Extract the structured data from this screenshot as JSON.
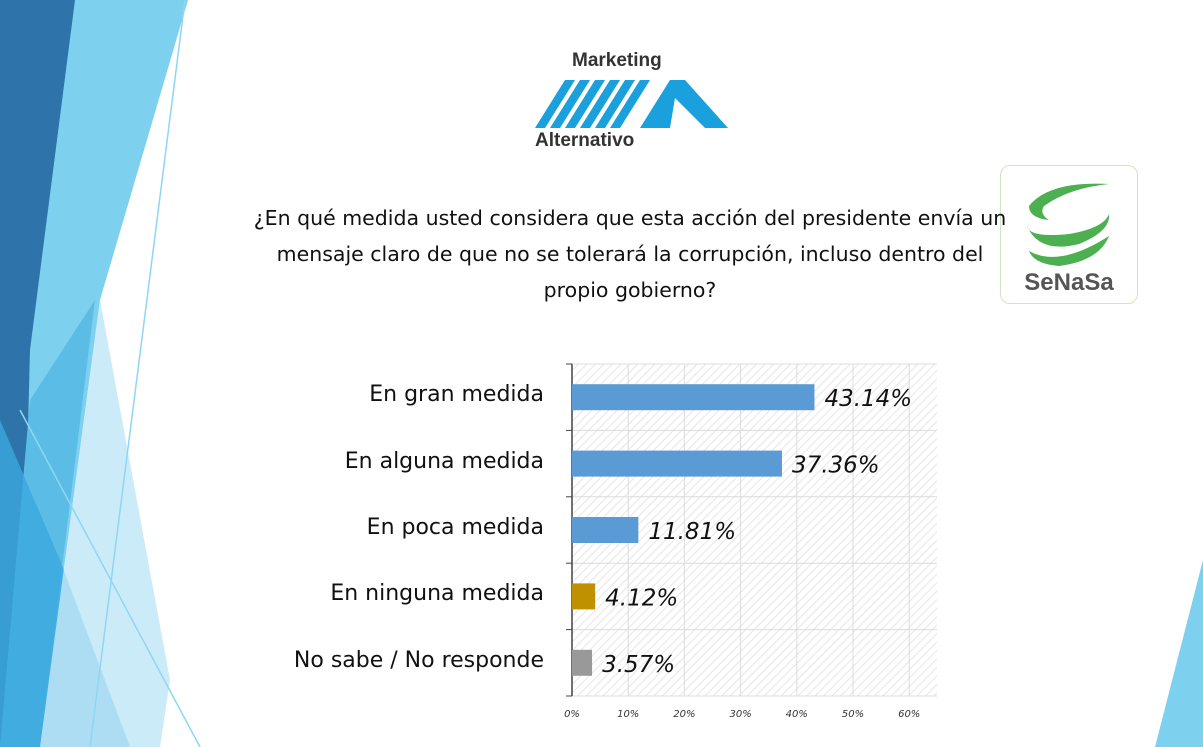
{
  "logos": {
    "marketing_alternativo": {
      "line1": "Marketing",
      "line2": "Alternativo",
      "color": "#1aa0dc"
    },
    "senasa": {
      "text": "SeNaSa",
      "color": "#4caf50"
    }
  },
  "question": "¿En qué medida usted considera que esta acción del presidente envía un mensaje claro de que no se tolerará la corrupción, incluso dentro del propio gobierno?",
  "chart_data": {
    "type": "bar",
    "orientation": "horizontal",
    "categories": [
      "En gran medida",
      "En alguna medida",
      "En poca medida",
      "En ninguna medida",
      "No sabe / No responde"
    ],
    "values": [
      43.14,
      37.36,
      11.81,
      4.12,
      3.57
    ],
    "data_labels": [
      "43.14%",
      "37.36%",
      "11.81%",
      "4.12%",
      "3.57%"
    ],
    "colors": [
      "#5b9bd5",
      "#5b9bd5",
      "#5b9bd5",
      "#bf9000",
      "#999999"
    ],
    "xlim": [
      0,
      65
    ],
    "x_ticks": [
      "0%",
      "10%",
      "20%",
      "30%",
      "40%",
      "50%",
      "60%"
    ],
    "grid": true
  }
}
